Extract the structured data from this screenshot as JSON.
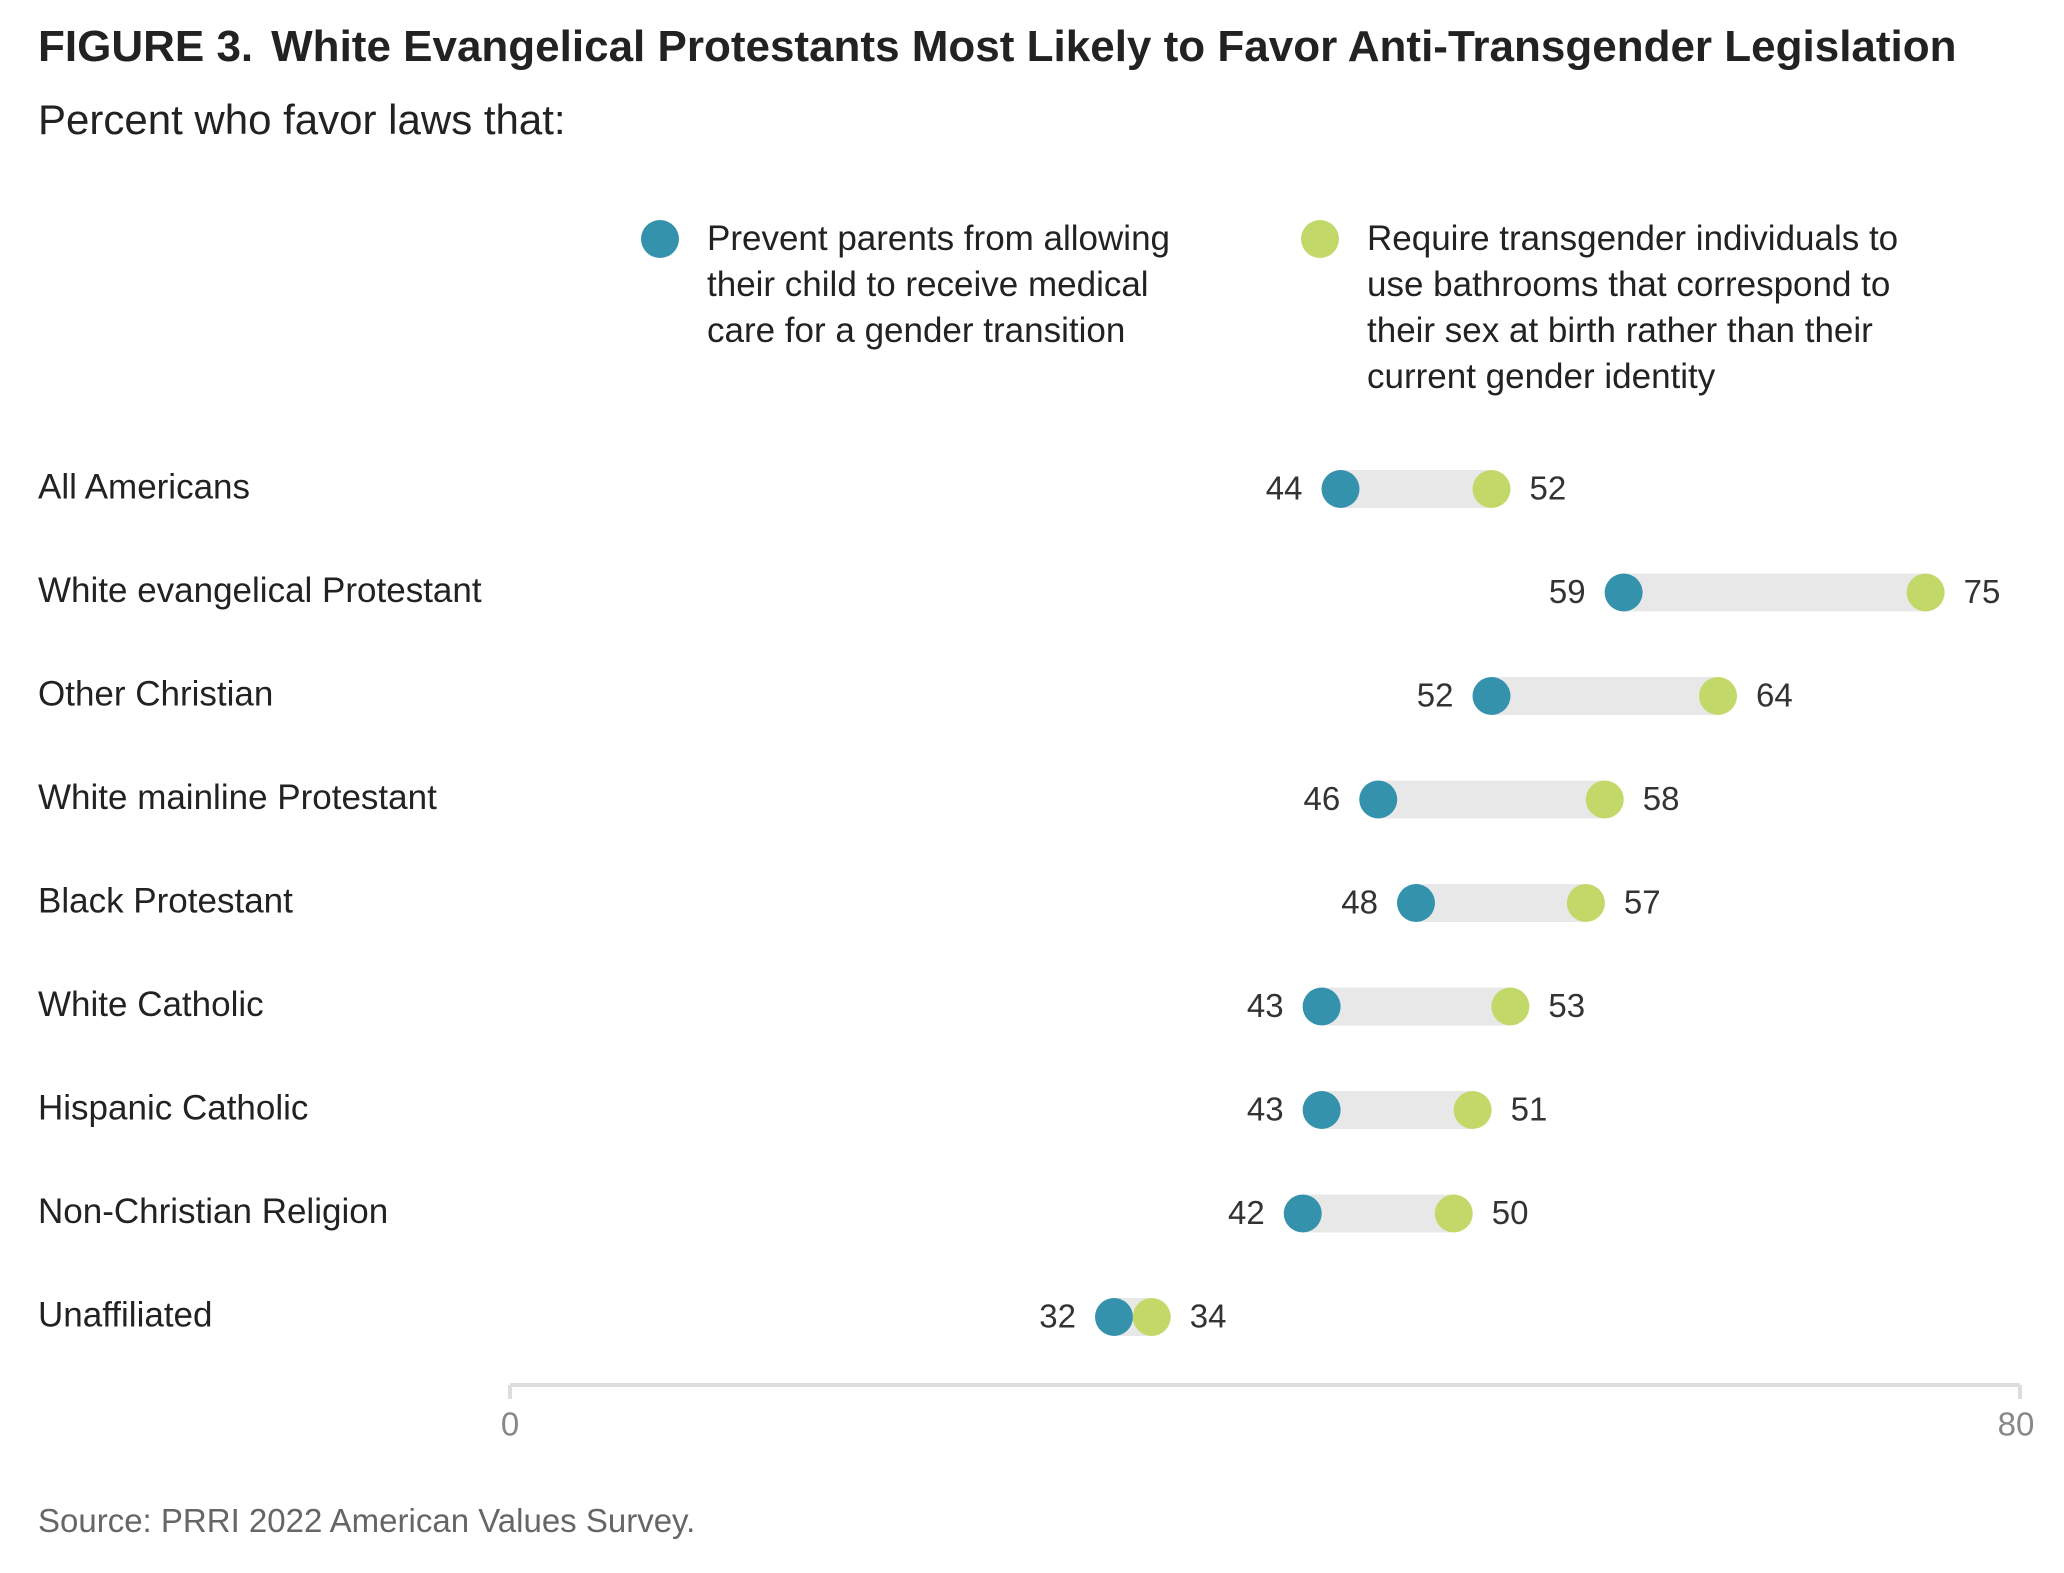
{
  "figure_label": "FIGURE 3.",
  "chart_data": {
    "type": "dumbbell",
    "title": "White Evangelical Protestants Most Likely to Favor Anti-Transgender Legislation",
    "subtitle": "Percent who favor laws that:",
    "categories": [
      "All Americans",
      "White evangelical Protestant",
      "Other Christian",
      "White mainline Protestant",
      "Black Protestant",
      "White Catholic",
      "Hispanic Catholic",
      "Non-Christian Religion",
      "Unaffiliated"
    ],
    "series": [
      {
        "name": "Prevent parents from allowing their child to receive medical care for a gender transition",
        "legend_lines": [
          "Prevent parents from allowing",
          "their child to receive medical",
          "care for a gender transition"
        ],
        "color": "#3592ad",
        "values": [
          44,
          59,
          52,
          46,
          48,
          43,
          43,
          42,
          32
        ]
      },
      {
        "name": "Require transgender individuals to use bathrooms that correspond to their sex at birth rather than their current gender identity",
        "legend_lines": [
          "Require transgender individuals to",
          "use bathrooms that correspond to",
          "their sex at birth rather than their",
          "current gender identity"
        ],
        "color": "#c2d96a",
        "values": [
          52,
          75,
          64,
          58,
          57,
          53,
          51,
          50,
          34
        ]
      }
    ],
    "xlim": [
      0,
      80
    ],
    "x_tick_labels": [
      "0",
      "80"
    ],
    "legend_position": "top",
    "grid": false,
    "connector_color": "#e8e8e8",
    "axis_color": "#dddddd"
  },
  "source": "Source: PRRI 2022 American Values Survey."
}
